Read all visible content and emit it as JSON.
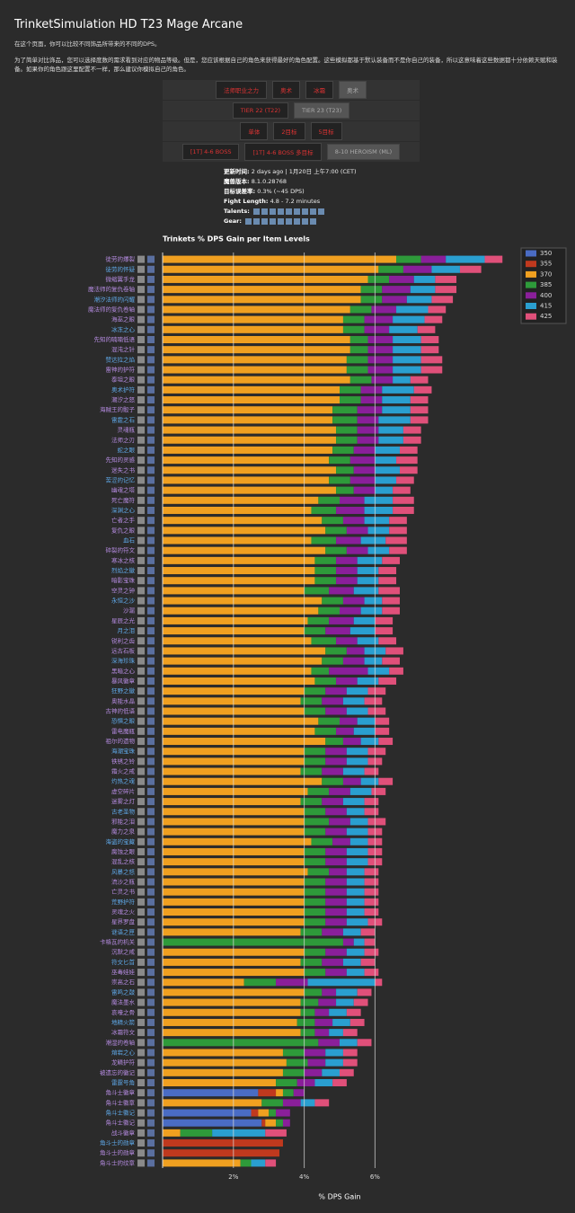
{
  "header": {
    "title": "TrinketSimulation HD T23 Mage Arcane",
    "paragraphs": [
      "在这个页面，你可以比较不同饰品所带来的不同的DPS。",
      "为了简单对比饰品，您可以选择度数的需求看到对应的物品等级。但是，您应该根据自己的角色来获得最好的角色配置。这些模拟都基于默认装备而不是你自己的装备，所以这意味着这些数据都十分依赖天赋和装备。如果你的角色跟这里配置不一样，那么建议你模拟自己的角色。"
    ]
  },
  "buttons": [
    [
      "法师职业之力",
      "奥术",
      "冰霜",
      "奥术"
    ],
    [
      "TIER 22 (T22)",
      "TIER 23 (T23)"
    ],
    [
      "单体",
      "2目标",
      "5目标"
    ],
    [
      "[1T] 4-6 BOSS",
      "[1T] 4-6 BOSS 多目标",
      "8-10 HEROISM (ML)"
    ]
  ],
  "info": [
    [
      "更新时间:",
      "2 days ago | 1月20日 上午7:00 (CET)"
    ],
    [
      "魔兽版本:",
      "8.1.0.28768"
    ],
    [
      "目标误差率:",
      "0.3% (~45 DPS)"
    ],
    [
      "Fight Length:",
      "4.8 - 7.2 minutes"
    ],
    [
      "Talents:",
      ""
    ],
    [
      "Gear:",
      ""
    ]
  ],
  "chart_data": {
    "type": "bar",
    "orientation": "horizontal",
    "stacked": true,
    "title": "Trinkets % DPS Gain per Item Levels",
    "xlabel": "% DPS Gain",
    "categories": [
      "徒劳的爆裂",
      "徒劳的怀疑",
      "微缩翼手龙",
      "魔法师的复仇卷轴",
      "潮汐法师的闪耀",
      "魔法师的复仇卷轴",
      "海巫之眼",
      "冰冻之心",
      "先知的喃喃低语",
      "混沌之针",
      "赞达拉之焰",
      "雷神的护符",
      "泰坦之眼",
      "奥术护符",
      "潮汐之怒",
      "海贼王的骰子",
      "雷霆之石",
      "灵魂瓶",
      "法师之刃",
      "蛇之眼",
      "先知的灵感",
      "迷失之书",
      "苦涩的记忆",
      "幽魂之塔",
      "死亡魔符",
      "深渊之心",
      "亡者之手",
      "复仇之眼",
      "血石",
      "碎裂的符文",
      "寒冰之核",
      "烈焰之徽",
      "暗影宝珠",
      "空灵之钟",
      "永恒之沙",
      "沙漏",
      "星辰之光",
      "月之泪",
      "锐利之齿",
      "远古石板",
      "深海珍珠",
      "黑暗之心",
      "暴风徽章",
      "狂野之徽",
      "奥能水晶",
      "古神的低语",
      "恐惧之眼",
      "雷电魔瓶",
      "祖尔的遗物",
      "海潮宝珠",
      "铁锈之铃",
      "霜火之戒",
      "灼热之魂",
      "虚空碎片",
      "迷雾之灯",
      "古老圣物",
      "邪能之泪",
      "魔力之泉",
      "海盗的宝藏",
      "腐蚀之眼",
      "混乱之核",
      "风暴之怒",
      "流沙之瓶",
      "亡灵之书",
      "荒野护符",
      "灵魂之火",
      "星界罗盘",
      "谜语之匣",
      "卡格瓦的机关",
      "沉默之戒",
      "符文匕首",
      "巫毒娃娃",
      "崇高之石",
      "雷鸣之鼓",
      "魔法墨水",
      "哀嚎之骨",
      "地精火箭",
      "冰霜符文",
      "潮湿的卷轴",
      "熔岩之心",
      "龙鳞护符",
      "被遗忘的徽记",
      "雷霆号角",
      "角斗士徽章",
      "角斗士徽章",
      "角斗士徽记",
      "角斗士徽记",
      "战斗徽章",
      "角斗士的勋章",
      "角斗士的勋章",
      "角斗士的纹章"
    ],
    "series": [
      {
        "name": "350",
        "color": "#4a6cc4",
        "values": [
          null,
          null,
          null,
          null,
          null,
          null,
          null,
          null,
          null,
          null,
          null,
          null,
          null,
          null,
          null,
          null,
          null,
          null,
          null,
          null,
          null,
          null,
          null,
          null,
          null,
          null,
          null,
          null,
          null,
          null,
          null,
          null,
          null,
          null,
          null,
          null,
          null,
          null,
          null,
          null,
          null,
          null,
          null,
          null,
          null,
          null,
          null,
          null,
          null,
          null,
          null,
          null,
          null,
          null,
          null,
          null,
          null,
          null,
          null,
          null,
          null,
          null,
          null,
          null,
          null,
          null,
          null,
          null,
          null,
          null,
          null,
          null,
          null,
          null,
          null,
          null,
          null,
          null,
          null,
          null,
          null,
          null,
          null,
          2.7,
          null,
          2.5,
          2.8,
          null,
          null,
          null,
          null
        ]
      },
      {
        "name": "355",
        "color": "#c0391e",
        "values": [
          null,
          null,
          null,
          null,
          null,
          null,
          null,
          null,
          null,
          null,
          null,
          null,
          null,
          null,
          null,
          null,
          null,
          null,
          null,
          null,
          null,
          null,
          null,
          null,
          null,
          null,
          null,
          null,
          null,
          null,
          null,
          null,
          null,
          null,
          null,
          null,
          null,
          null,
          null,
          null,
          null,
          null,
          null,
          null,
          null,
          null,
          null,
          null,
          null,
          null,
          null,
          null,
          null,
          null,
          null,
          null,
          null,
          null,
          null,
          null,
          null,
          null,
          null,
          null,
          null,
          null,
          null,
          null,
          null,
          null,
          null,
          null,
          null,
          null,
          null,
          null,
          null,
          null,
          null,
          null,
          null,
          null,
          null,
          0.5,
          null,
          0.2,
          0.1,
          null,
          3.4,
          3.3,
          null
        ]
      },
      {
        "name": "370",
        "color": "#f0a020",
        "values": [
          6.6,
          6.1,
          5.8,
          5.6,
          5.6,
          5.3,
          5.1,
          5.1,
          5.3,
          5.3,
          5.2,
          5.2,
          5.3,
          5.0,
          5.0,
          4.8,
          4.8,
          4.9,
          4.9,
          4.8,
          4.7,
          4.9,
          4.7,
          4.9,
          4.4,
          4.2,
          4.5,
          4.6,
          4.2,
          4.6,
          4.3,
          4.3,
          4.3,
          4.0,
          4.5,
          4.4,
          4.1,
          4.0,
          4.2,
          4.6,
          4.5,
          4.2,
          4.3,
          4.0,
          3.9,
          4.0,
          4.4,
          4.3,
          4.6,
          4.0,
          4.0,
          3.9,
          4.5,
          4.1,
          3.9,
          4.0,
          4.0,
          4.0,
          4.2,
          4.0,
          4.0,
          4.1,
          4.0,
          4.0,
          4.0,
          4.0,
          4.0,
          3.9,
          null,
          4.0,
          3.9,
          4.0,
          2.3,
          4.0,
          3.9,
          3.9,
          3.8,
          3.9,
          null,
          3.4,
          3.5,
          3.4,
          3.2,
          0.2,
          2.8,
          0.3,
          0.3,
          0.5,
          null,
          null,
          2.2
        ]
      },
      {
        "name": "385",
        "color": "#2e9a3a",
        "values": [
          0.7,
          0.7,
          0.6,
          0.6,
          0.6,
          0.6,
          0.6,
          0.6,
          0.5,
          0.5,
          0.6,
          0.6,
          0.6,
          0.6,
          0.6,
          0.7,
          0.7,
          0.6,
          0.6,
          0.6,
          0.6,
          0.5,
          0.6,
          0.5,
          0.6,
          0.7,
          0.6,
          0.6,
          0.7,
          0.6,
          0.6,
          0.6,
          0.6,
          0.7,
          0.6,
          0.6,
          0.6,
          0.6,
          0.7,
          0.6,
          0.6,
          0.5,
          0.6,
          0.6,
          0.6,
          0.6,
          0.6,
          0.6,
          0.5,
          0.6,
          0.6,
          0.6,
          0.6,
          0.6,
          0.6,
          0.6,
          0.7,
          0.6,
          0.6,
          0.6,
          0.6,
          0.6,
          0.6,
          0.6,
          0.6,
          0.6,
          0.6,
          0.6,
          5.1,
          0.6,
          0.6,
          0.6,
          0.9,
          0.5,
          0.5,
          0.4,
          0.5,
          0.4,
          4.4,
          0.6,
          0.6,
          0.6,
          0.6,
          0.3,
          0.6,
          0.2,
          0.2,
          0.9,
          null,
          null,
          0.3
        ]
      },
      {
        "name": "400",
        "color": "#8a1f9a",
        "values": [
          0.7,
          0.8,
          0.7,
          0.8,
          0.7,
          0.7,
          0.8,
          0.7,
          0.7,
          0.7,
          0.7,
          0.7,
          0.6,
          0.6,
          0.6,
          0.7,
          0.6,
          0.6,
          0.6,
          0.6,
          0.7,
          0.6,
          0.7,
          0.6,
          0.7,
          0.8,
          0.6,
          0.6,
          0.7,
          0.6,
          0.6,
          0.6,
          0.6,
          0.7,
          0.6,
          0.6,
          0.7,
          0.7,
          0.6,
          0.5,
          0.6,
          1.1,
          0.6,
          0.6,
          0.6,
          0.6,
          0.5,
          0.5,
          0.5,
          0.6,
          0.6,
          0.6,
          0.5,
          0.6,
          0.6,
          0.6,
          0.6,
          0.6,
          0.5,
          0.6,
          0.6,
          0.5,
          0.6,
          0.6,
          0.6,
          0.6,
          0.6,
          0.6,
          0.3,
          0.6,
          0.6,
          0.6,
          0.9,
          0.4,
          0.5,
          0.4,
          0.5,
          0.4,
          0.6,
          0.6,
          0.5,
          0.5,
          0.5,
          0.3,
          0.5,
          0.4,
          0.2,
          null,
          null,
          null,
          null
        ]
      },
      {
        "name": "415",
        "color": "#2a9fd0",
        "values": [
          1.1,
          0.8,
          0.6,
          0.7,
          0.7,
          0.9,
          0.9,
          0.8,
          0.8,
          0.8,
          0.8,
          0.8,
          0.5,
          0.9,
          0.8,
          0.8,
          0.9,
          0.7,
          0.7,
          0.7,
          0.6,
          0.7,
          0.6,
          0.5,
          0.8,
          0.8,
          0.7,
          0.6,
          0.7,
          0.6,
          0.7,
          0.6,
          0.6,
          0.7,
          0.5,
          0.6,
          0.6,
          0.7,
          0.6,
          0.6,
          0.5,
          0.6,
          0.6,
          0.6,
          0.6,
          0.6,
          0.5,
          0.6,
          0.5,
          0.6,
          0.6,
          0.6,
          0.5,
          0.6,
          0.6,
          0.5,
          0.5,
          0.6,
          0.5,
          0.6,
          0.6,
          0.5,
          0.5,
          0.5,
          0.5,
          0.5,
          0.6,
          0.5,
          0.3,
          0.5,
          0.5,
          0.5,
          1.9,
          0.6,
          0.5,
          0.5,
          0.5,
          0.4,
          0.5,
          0.5,
          0.5,
          0.5,
          0.5,
          null,
          0.4,
          null,
          null,
          1.5,
          null,
          null,
          0.4
        ]
      },
      {
        "name": "425",
        "color": "#e0507a",
        "values": [
          0.5,
          0.6,
          0.6,
          0.6,
          0.6,
          0.5,
          0.5,
          0.5,
          0.5,
          0.5,
          0.6,
          0.6,
          0.5,
          0.5,
          0.5,
          0.5,
          0.5,
          0.5,
          0.5,
          0.5,
          0.6,
          0.5,
          0.5,
          0.5,
          0.6,
          0.6,
          0.5,
          0.5,
          0.6,
          0.5,
          0.5,
          0.5,
          0.5,
          0.6,
          0.5,
          0.5,
          0.5,
          0.5,
          0.5,
          0.5,
          0.5,
          0.4,
          0.5,
          0.5,
          0.5,
          0.5,
          0.4,
          0.4,
          0.4,
          0.5,
          0.4,
          0.4,
          0.4,
          0.4,
          0.4,
          0.4,
          0.5,
          0.4,
          0.4,
          0.4,
          0.4,
          0.4,
          0.4,
          0.4,
          0.4,
          0.4,
          0.4,
          0.4,
          0.3,
          0.4,
          0.4,
          0.4,
          0.2,
          0.4,
          0.4,
          0.4,
          0.4,
          0.4,
          0.4,
          0.4,
          0.4,
          0.4,
          0.4,
          null,
          0.4,
          null,
          null,
          0.6,
          null,
          null,
          0.3
        ]
      }
    ],
    "xlim": [
      0,
      10
    ],
    "xticks": [
      {
        "value": 2,
        "label": "2%"
      },
      {
        "value": 4,
        "label": "4%"
      },
      {
        "value": 6,
        "label": "6%"
      }
    ],
    "grid": true,
    "legend": "right"
  }
}
